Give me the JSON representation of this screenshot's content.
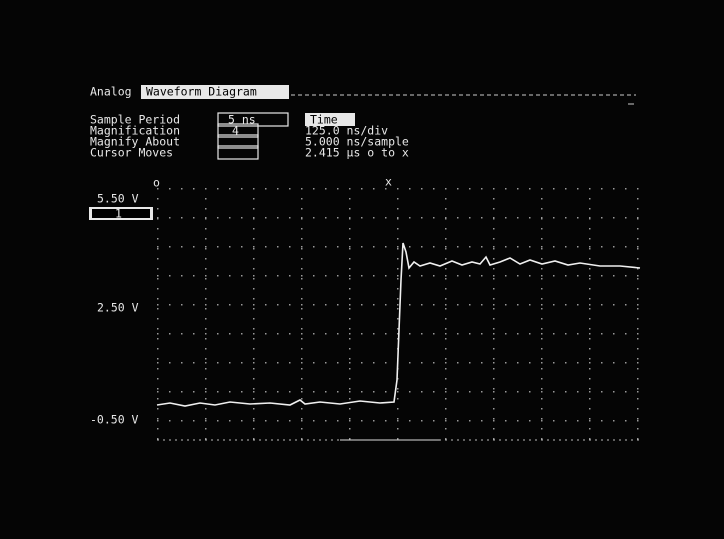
{
  "header": {
    "mode": "Analog",
    "menu": "Waveform Diagram"
  },
  "settings": [
    {
      "label": "Sample Period",
      "field": "5 ns",
      "extra": "Time"
    },
    {
      "label": "Magnification",
      "field": "4",
      "extra": "125.0 ns/div"
    },
    {
      "label": "Magnify About",
      "extra": "5.000 ns/sample"
    },
    {
      "label": "Cursor Moves",
      "extra": "2.415 µs o to x"
    }
  ],
  "markers": {
    "o": "o",
    "x": "x"
  },
  "display": {
    "top_label": "5.50 V",
    "channel": "1",
    "mid_label": "2.50 V",
    "bottom_label": "-0.50 V"
  }
}
